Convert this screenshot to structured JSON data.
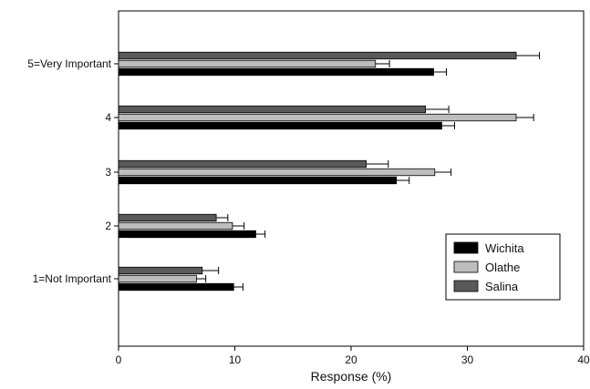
{
  "chart_data": {
    "type": "bar",
    "orientation": "horizontal",
    "title": "",
    "xlabel": "Response (%)",
    "ylabel": "",
    "xlim": [
      0,
      40
    ],
    "xticks": [
      0,
      10,
      20,
      30,
      40
    ],
    "categories": [
      "1=Not Important",
      "2",
      "3",
      "4",
      "5=Very Important"
    ],
    "category_labels": [
      "1=Not Important",
      "2",
      "3",
      "4",
      "5=Very Important"
    ],
    "series": [
      {
        "name": "Wichita",
        "color": "#000000",
        "values": [
          9.9,
          11.8,
          23.9,
          27.8,
          27.1
        ],
        "errors": [
          0.8,
          0.8,
          1.1,
          1.1,
          1.1
        ]
      },
      {
        "name": "Olathe",
        "color": "#bdbdbd",
        "values": [
          6.7,
          9.8,
          27.2,
          34.2,
          22.1
        ],
        "errors": [
          0.8,
          1.0,
          1.4,
          1.5,
          1.2
        ]
      },
      {
        "name": "Salina",
        "color": "#595959",
        "values": [
          7.2,
          8.4,
          21.3,
          26.4,
          34.2
        ],
        "errors": [
          1.4,
          1.0,
          1.9,
          2.0,
          2.0
        ]
      }
    ],
    "legend": {
      "position": "bottom-right",
      "entries": [
        "Wichita",
        "Olathe",
        "Salina"
      ]
    },
    "grid": false
  }
}
